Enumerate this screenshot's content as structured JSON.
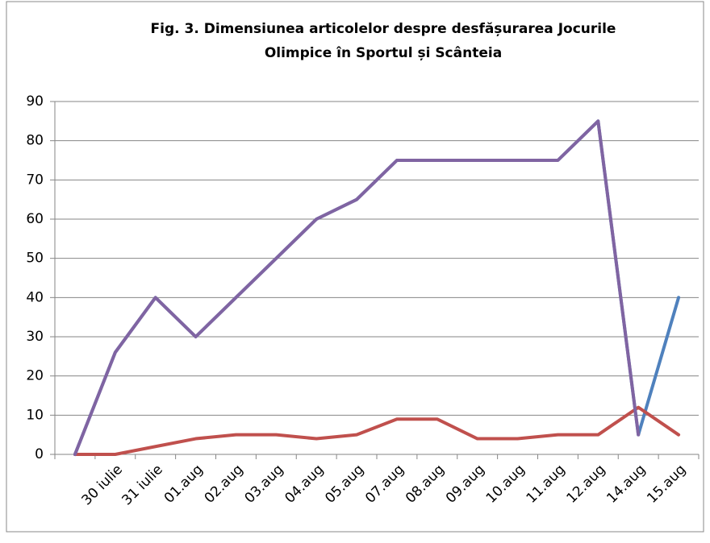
{
  "chart_data": {
    "type": "line",
    "title": [
      "Fig. 3. Dimensiunea articolelor despre desfășurarea Jocurile",
      "Olimpice în Sportul și Scânteia"
    ],
    "categories": [
      null,
      "30 iulie",
      "31 iulie",
      "01.aug",
      "02.aug",
      "03.aug",
      "04.aug",
      "05.aug",
      "07.aug",
      "08.aug",
      "09.aug",
      "10.aug",
      "11.aug",
      "12.aug",
      "14.aug",
      "15.aug"
    ],
    "series": [
      {
        "color": "#4f81bd",
        "values": [
          0,
          26,
          40,
          30,
          40,
          50,
          60,
          65,
          75,
          75,
          75,
          75,
          75,
          85,
          5,
          40
        ]
      },
      {
        "color": "#c0504d",
        "values": [
          0,
          0,
          2,
          4,
          5,
          5,
          4,
          5,
          9,
          9,
          4,
          4,
          5,
          5,
          12,
          5
        ]
      },
      {
        "color": "#8064a2",
        "values": [
          0,
          26,
          40,
          30,
          40,
          50,
          60,
          65,
          75,
          75,
          75,
          75,
          75,
          85,
          5,
          null
        ]
      }
    ],
    "ylim": [
      0,
      90
    ],
    "yticks": [
      0,
      10,
      20,
      30,
      40,
      50,
      60,
      70,
      80,
      90
    ],
    "grid": true
  }
}
